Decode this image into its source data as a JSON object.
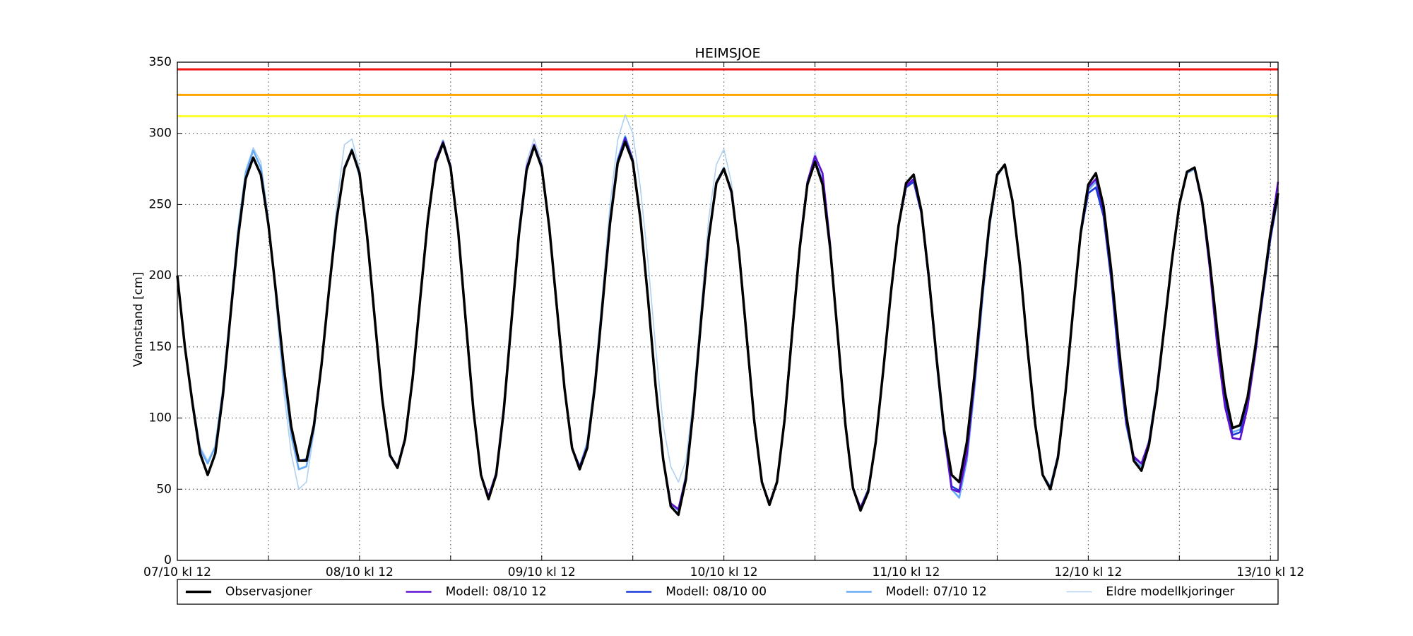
{
  "chart_data": {
    "type": "line",
    "title": "HEIMSJOE",
    "y_label": "Vannstand [cm]",
    "x": [
      0,
      1,
      2,
      3,
      4,
      5,
      6,
      7,
      8,
      9,
      10,
      11,
      12,
      13,
      14,
      15,
      16,
      17,
      18,
      19,
      20,
      21,
      22,
      23,
      24,
      25,
      26,
      27,
      28,
      29,
      30,
      31,
      32,
      33,
      34,
      35,
      36,
      37,
      38,
      39,
      40,
      41,
      42,
      43,
      44,
      45,
      46,
      47,
      48,
      49,
      50,
      51,
      52,
      53,
      54,
      55,
      56,
      57,
      58,
      59,
      60,
      61,
      62,
      63,
      64,
      65,
      66,
      67,
      68,
      69,
      70,
      71,
      72,
      73,
      74,
      75,
      76,
      77,
      78,
      79,
      80,
      81,
      82,
      83,
      84,
      85,
      86,
      87,
      88,
      89,
      90,
      91,
      92,
      93,
      94,
      95,
      96,
      97,
      98,
      99,
      100,
      101,
      102,
      103,
      104,
      105,
      106,
      107,
      108,
      109,
      110,
      111,
      112,
      113,
      114,
      115,
      116,
      117,
      118,
      119,
      120,
      121,
      122,
      123,
      124,
      125,
      126,
      127,
      128,
      129,
      130,
      131,
      132,
      133,
      134,
      135,
      136,
      137,
      138,
      139,
      140,
      141,
      142,
      143,
      144,
      145
    ],
    "series": [
      {
        "name": "Observasjoner",
        "color": "#000000",
        "width": 3.5,
        "values": [
          200,
          150,
          110,
          75,
          60,
          75,
          116,
          172,
          227,
          268,
          283,
          271,
          236,
          188,
          137,
          94,
          70,
          70,
          95,
          138,
          191,
          240,
          275,
          288,
          272,
          228,
          170,
          113,
          74,
          65,
          85,
          128,
          184,
          239,
          279,
          293,
          276,
          231,
          168,
          106,
          60,
          43,
          60,
          105,
          167,
          229,
          274,
          291,
          276,
          234,
          178,
          121,
          79,
          64,
          79,
          122,
          179,
          237,
          279,
          294,
          280,
          240,
          184,
          123,
          71,
          38,
          32,
          57,
          107,
          169,
          226,
          265,
          275,
          259,
          216,
          157,
          98,
          55,
          39,
          55,
          99,
          160,
          220,
          264,
          280,
          264,
          219,
          158,
          96,
          51,
          35,
          48,
          83,
          134,
          188,
          235,
          265,
          271,
          246,
          199,
          143,
          92,
          60,
          55,
          83,
          130,
          187,
          238,
          271,
          278,
          253,
          207,
          149,
          96,
          60,
          50,
          72,
          118,
          176,
          230,
          264,
          272,
          249,
          205,
          151,
          102,
          70,
          63,
          81,
          117,
          163,
          210,
          250,
          273,
          276,
          252,
          210,
          161,
          118,
          93,
          95,
          115,
          150,
          190,
          230,
          258
        ]
      },
      {
        "name": "Modell: 08/10 12",
        "color": "#6010d0",
        "width": 2.6,
        "values": [
          null,
          null,
          null,
          null,
          null,
          null,
          null,
          null,
          null,
          null,
          null,
          null,
          null,
          null,
          null,
          null,
          null,
          null,
          null,
          null,
          null,
          null,
          null,
          null,
          272,
          228,
          170,
          113,
          74,
          65,
          85,
          128,
          185,
          240,
          281,
          294,
          277,
          231,
          167,
          105,
          60,
          45,
          61,
          106,
          168,
          230,
          276,
          292,
          277,
          234,
          178,
          121,
          79,
          65,
          80,
          123,
          180,
          238,
          280,
          296,
          281,
          240,
          184,
          122,
          71,
          40,
          36,
          58,
          108,
          170,
          227,
          265,
          275,
          258,
          215,
          156,
          97,
          55,
          40,
          55,
          100,
          162,
          222,
          266,
          284,
          272,
          222,
          158,
          96,
          51,
          37,
          49,
          83,
          134,
          188,
          235,
          263,
          268,
          245,
          198,
          142,
          90,
          50,
          48,
          74,
          125,
          184,
          237,
          271,
          278,
          253,
          206,
          148,
          95,
          60,
          50,
          72,
          118,
          176,
          230,
          262,
          268,
          246,
          202,
          146,
          98,
          73,
          68,
          83,
          118,
          163,
          210,
          250,
          273,
          276,
          250,
          205,
          150,
          108,
          86,
          85,
          108,
          145,
          188,
          230,
          266
        ]
      },
      {
        "name": "Modell: 08/10 00",
        "color": "#1a3ad8",
        "width": 2.6,
        "values": [
          null,
          null,
          null,
          null,
          null,
          null,
          null,
          null,
          null,
          null,
          null,
          null,
          236,
          188,
          137,
          94,
          70,
          71,
          95,
          138,
          191,
          240,
          276,
          288,
          272,
          228,
          170,
          113,
          74,
          66,
          86,
          129,
          185,
          240,
          280,
          294,
          277,
          231,
          167,
          105,
          60,
          44,
          60,
          106,
          168,
          230,
          275,
          292,
          276,
          234,
          177,
          121,
          79,
          66,
          80,
          123,
          180,
          238,
          280,
          297,
          281,
          240,
          184,
          122,
          71,
          40,
          36,
          58,
          108,
          170,
          227,
          265,
          275,
          258,
          215,
          156,
          97,
          55,
          40,
          55,
          100,
          161,
          221,
          265,
          281,
          265,
          219,
          157,
          95,
          50,
          37,
          49,
          83,
          134,
          188,
          235,
          262,
          266,
          244,
          197,
          141,
          90,
          52,
          49,
          75,
          125,
          184,
          237,
          271,
          278,
          253,
          206,
          148,
          95,
          60,
          51,
          73,
          119,
          176,
          229,
          258,
          262,
          242,
          198,
          140,
          96,
          72,
          68,
          83,
          118,
          164,
          211,
          251,
          273,
          276,
          252,
          208,
          158,
          112,
          88,
          90,
          110,
          146,
          186,
          226,
          256
        ]
      },
      {
        "name": "Modell: 07/10 12",
        "color": "#66aaf5",
        "width": 2.6,
        "values": [
          200,
          150,
          112,
          78,
          68,
          80,
          120,
          175,
          232,
          272,
          288,
          276,
          238,
          186,
          130,
          88,
          64,
          66,
          92,
          136,
          190,
          240,
          276,
          289,
          270,
          226,
          168,
          112,
          73,
          66,
          86,
          130,
          186,
          240,
          280,
          295,
          277,
          230,
          166,
          105,
          60,
          45,
          62,
          108,
          170,
          232,
          276,
          292,
          276,
          232,
          176,
          120,
          78,
          66,
          82,
          125,
          182,
          240,
          282,
          298,
          282,
          240,
          183,
          122,
          70,
          40,
          35,
          60,
          110,
          171,
          228,
          266,
          276,
          258,
          214,
          155,
          97,
          54,
          40,
          56,
          100,
          161,
          221,
          265,
          281,
          266,
          220,
          158,
          95,
          50,
          37,
          50,
          84,
          135,
          189,
          236,
          263,
          268,
          244,
          197,
          140,
          88,
          50,
          44,
          70,
          120,
          180,
          235,
          270,
          278,
          252,
          206,
          148,
          95,
          60,
          52,
          74,
          120,
          176,
          228,
          260,
          266,
          246,
          200,
          140,
          95,
          70,
          66,
          84,
          120,
          165,
          211,
          250,
          272,
          275,
          250,
          208,
          160,
          115,
          90,
          92,
          112,
          148,
          188,
          228,
          255
        ]
      },
      {
        "name": "Eldre modellkjoringer",
        "color": "#b0d0f2",
        "width": 1.6,
        "values": [
          200,
          150,
          112,
          80,
          70,
          80,
          120,
          176,
          233,
          274,
          290,
          280,
          240,
          180,
          120,
          75,
          50,
          55,
          90,
          135,
          195,
          250,
          292,
          296,
          275,
          228,
          168,
          112,
          74,
          66,
          86,
          130,
          186,
          240,
          281,
          295,
          278,
          232,
          168,
          106,
          60,
          45,
          62,
          107,
          170,
          233,
          280,
          296,
          280,
          236,
          178,
          120,
          78,
          66,
          84,
          128,
          188,
          250,
          295,
          313,
          300,
          262,
          210,
          150,
          95,
          66,
          55,
          70,
          115,
          178,
          240,
          278,
          289,
          265,
          218,
          157,
          98,
          56,
          41,
          56,
          101,
          162,
          222,
          266,
          287,
          268,
          221,
          158,
          96,
          51,
          37,
          50,
          84,
          135,
          189,
          236,
          263,
          268,
          245,
          198,
          140,
          88,
          50,
          44,
          70,
          120,
          180,
          235,
          270,
          278,
          252,
          206,
          148,
          95,
          60,
          52,
          74,
          120,
          176,
          228,
          260,
          266,
          246,
          200,
          140,
          95,
          70,
          66,
          84,
          120,
          165,
          211,
          250,
          272,
          275,
          250,
          208,
          160,
          115,
          90,
          92,
          112,
          148,
          188,
          228,
          255
        ]
      }
    ],
    "thresholds": [
      {
        "value": 345,
        "color": "#ee1111"
      },
      {
        "value": 327,
        "color": "#ffa500"
      },
      {
        "value": 312,
        "color": "#ffff33"
      }
    ],
    "xlim": [
      0,
      145
    ],
    "ylim": [
      0,
      350
    ],
    "yticks": [
      0,
      50,
      100,
      150,
      200,
      250,
      300,
      350
    ],
    "xticks": [
      {
        "value": 0,
        "label": "07/10 kl 12"
      },
      {
        "value": 24,
        "label": "08/10 kl 12"
      },
      {
        "value": 48,
        "label": "09/10 kl 12"
      },
      {
        "value": 72,
        "label": "10/10 kl 12"
      },
      {
        "value": 96,
        "label": "11/10 kl 12"
      },
      {
        "value": 120,
        "label": "12/10 kl 12"
      },
      {
        "value": 144,
        "label": "13/10 kl 12"
      }
    ],
    "xminor": [
      12,
      36,
      60,
      84,
      108,
      132
    ],
    "grid": true,
    "legend": "bottom"
  }
}
